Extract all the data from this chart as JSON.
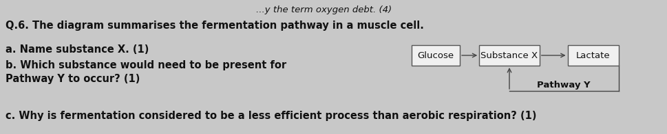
{
  "background_color": "#c8c8c8",
  "title_line": "...y the term oxygen debt. (4)",
  "q6_text": "Q.6. The diagram summarises the fermentation pathway in a muscle cell.",
  "qa_text": "a. Name substance X. (1)",
  "qb_line1": "b. Which substance would need to be present for",
  "qb_line2": "Pathway Y to occur? (1)",
  "qc_text": "c. Why is fermentation considered to be a less efficient process than aerobic respiration? (1)",
  "box_glucose": "Glucose",
  "box_substancex": "Substance X",
  "box_lactate": "Lactate",
  "label_pathwayy": "Pathway Y",
  "box_color": "#f0f0f0",
  "box_edge_color": "#555555",
  "text_color": "#111111",
  "arrow_color": "#444444",
  "font_size_title": 9.5,
  "font_size_main": 10.5,
  "font_size_box": 9.5
}
